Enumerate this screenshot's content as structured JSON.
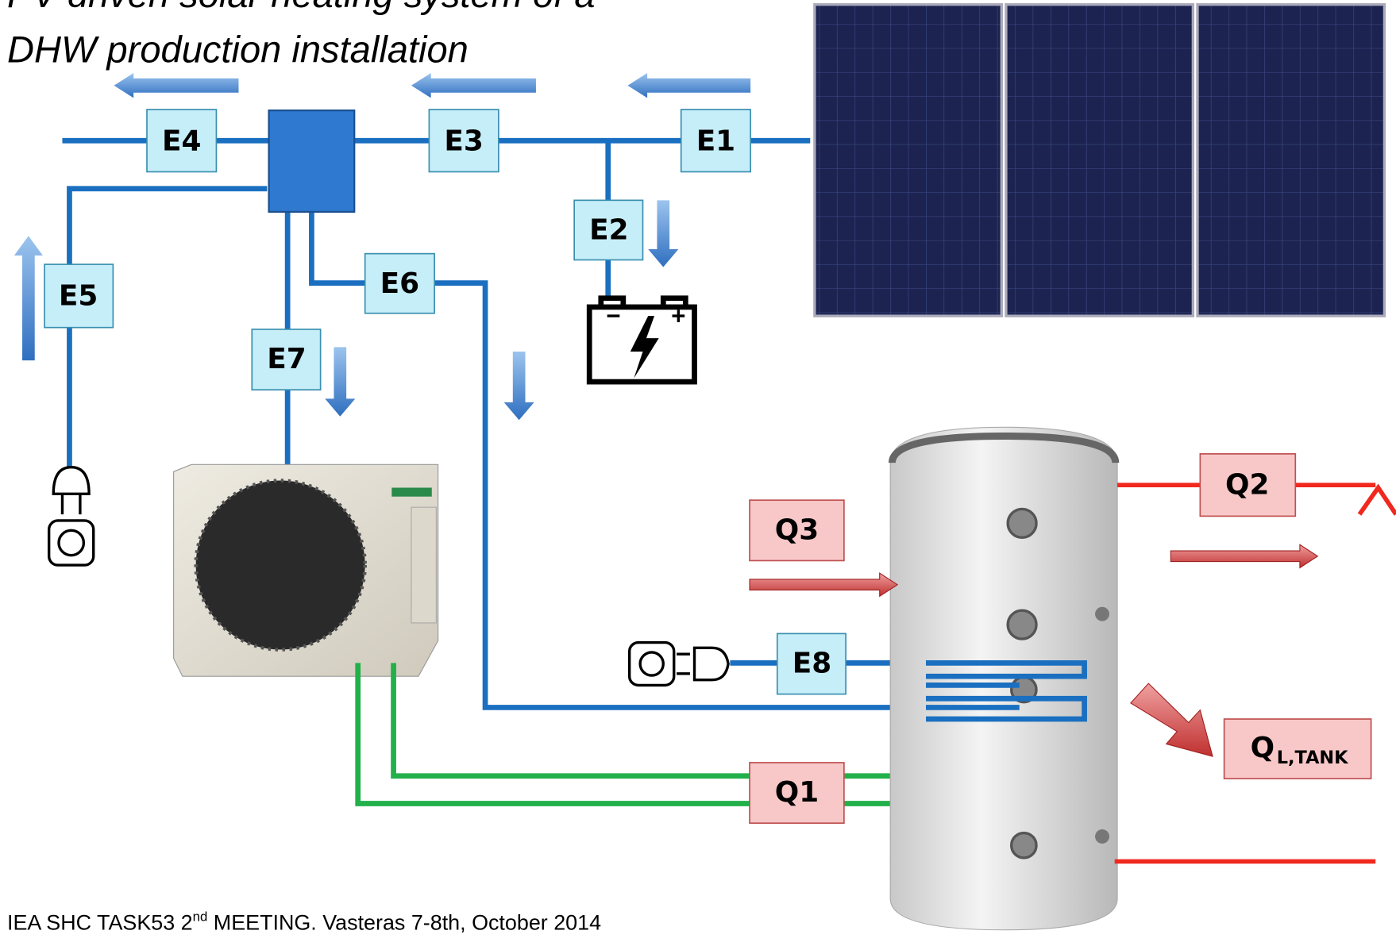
{
  "title": [
    "PV driven solar heating system of a",
    "DHW production installation"
  ],
  "labels": {
    "e1": "E1",
    "e2": "E2",
    "e3": "E3",
    "e4": "E4",
    "e5": "E5",
    "e6": "E6",
    "e7": "E7",
    "e8": "E8",
    "q1": "Q1",
    "q2": "Q2",
    "q3": "Q3",
    "ql": "Q",
    "ql_sub": "L,TANK"
  },
  "footer": {
    "before": "IEA SHC TASK53 2",
    "sup": "nd",
    "after": " MEETING. Vasteras 7-8th, October 2014"
  }
}
